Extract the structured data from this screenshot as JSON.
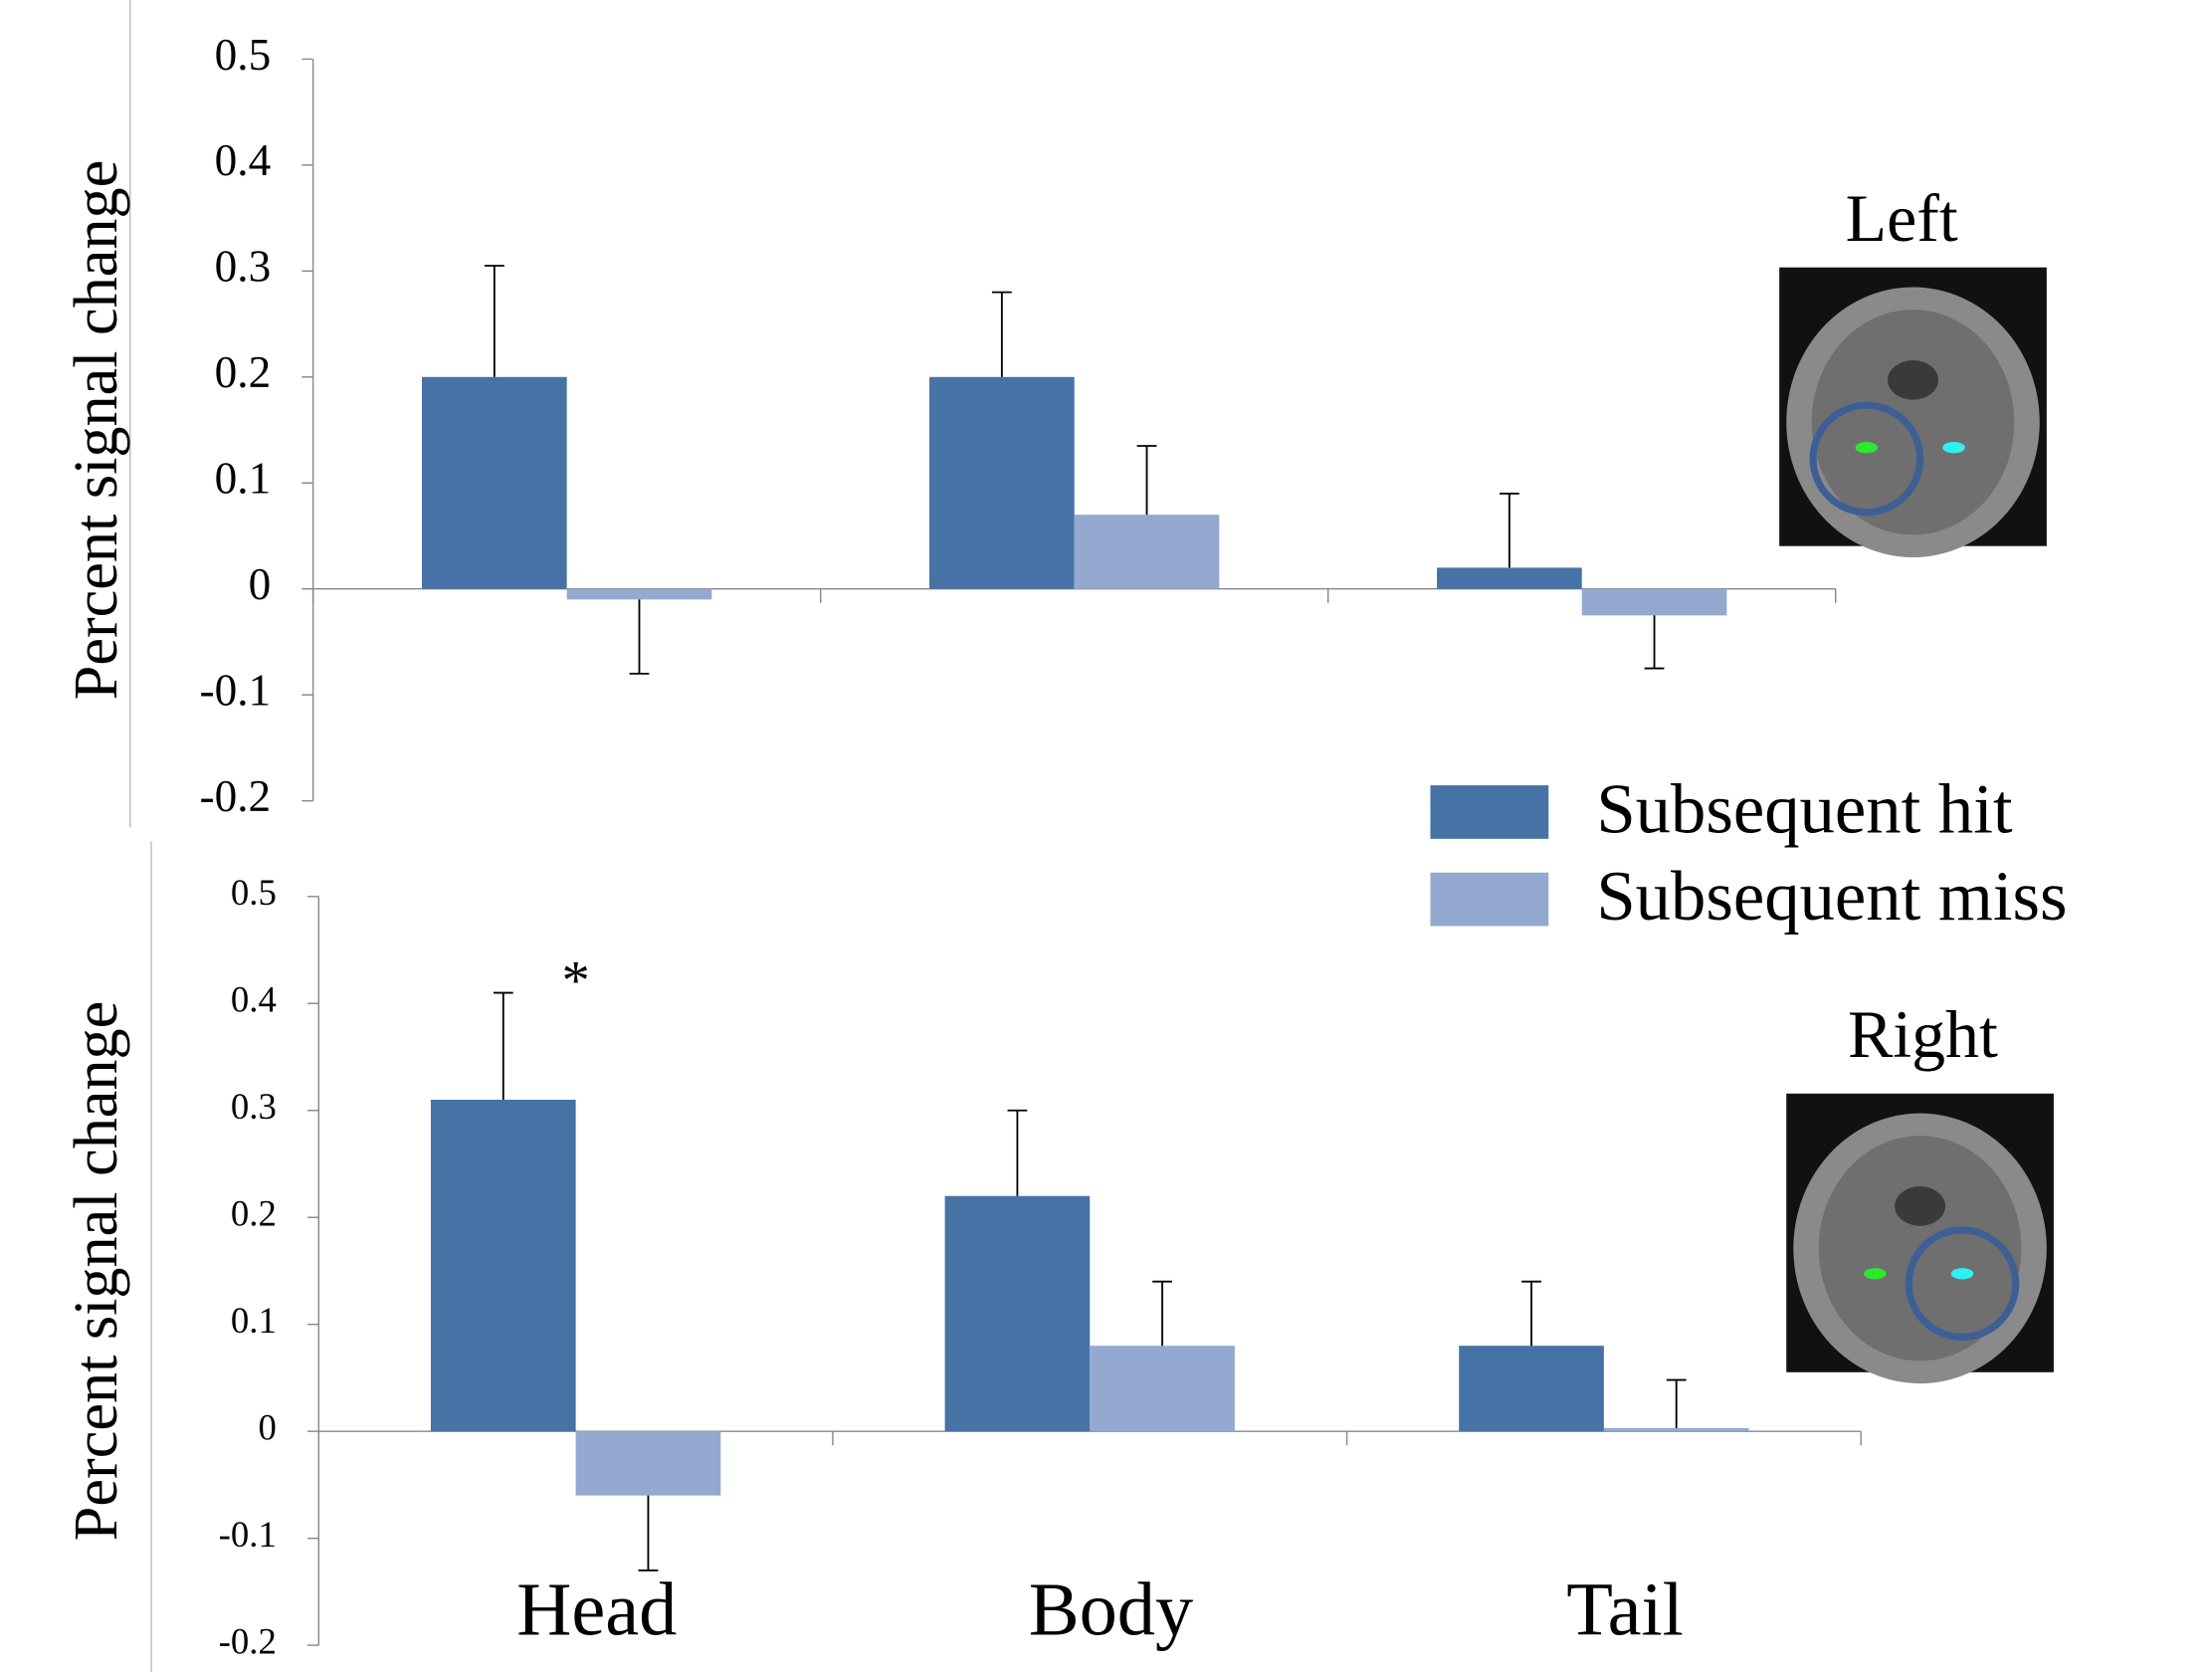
{
  "chart_data": [
    {
      "type": "bar",
      "panel_label": "Left",
      "y_label": "Percent signal change",
      "categories": [
        null,
        null,
        null
      ],
      "series": [
        {
          "name": "Subsequent hit",
          "color": "#4672a6",
          "values": [
            0.2,
            0.2,
            0.02
          ],
          "errors": [
            0.105,
            0.08,
            0.07
          ]
        },
        {
          "name": "Subsequent miss",
          "color": "#93a9d0",
          "values": [
            -0.01,
            0.07,
            -0.025
          ],
          "errors": [
            0.07,
            0.065,
            0.05
          ]
        }
      ],
      "ylim": [
        -0.2,
        0.5
      ],
      "yticks": [
        -0.2,
        -0.1,
        0,
        0.1,
        0.2,
        0.3,
        0.4,
        0.5
      ],
      "grid": false
    },
    {
      "type": "bar",
      "panel_label": "Right",
      "y_label": "Percent signal change",
      "categories": [
        "Head",
        "Body",
        "Tail"
      ],
      "series": [
        {
          "color": "#4672a6",
          "values": [
            0.31,
            0.22,
            0.08
          ],
          "errors": [
            0.1,
            0.08,
            0.06
          ]
        },
        {
          "color": "#93a9d0",
          "values": [
            -0.06,
            0.08,
            0.003
          ],
          "errors": [
            0.07,
            0.06,
            0.045
          ]
        }
      ],
      "annotation": "*",
      "ylim": [
        -0.2,
        0.5
      ],
      "yticks": [
        -0.2,
        -0.1,
        0,
        0.1,
        0.2,
        0.3,
        0.4,
        0.5
      ],
      "grid": false
    }
  ]
}
